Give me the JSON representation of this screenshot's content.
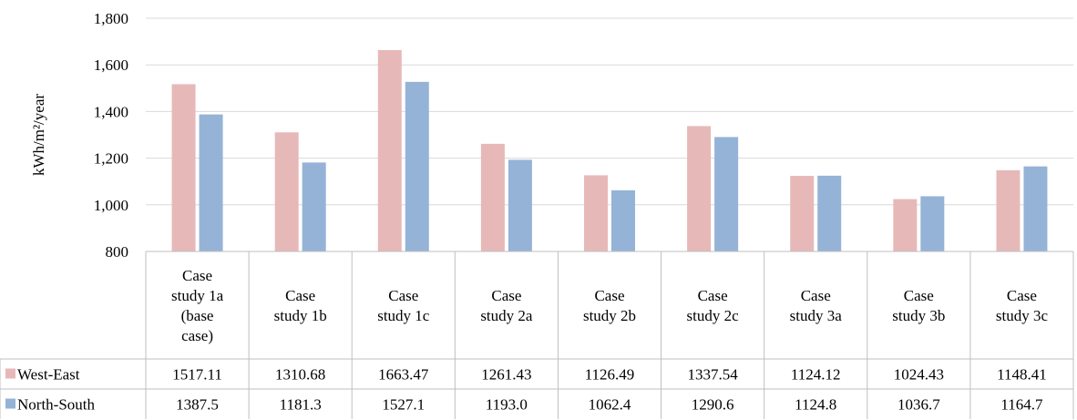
{
  "chart_data": {
    "type": "bar",
    "ylabel": "kWh/m²/year",
    "ylim": [
      800,
      1800
    ],
    "yticks": [
      800,
      1000,
      1200,
      1400,
      1600,
      1800
    ],
    "ytick_labels": [
      "800",
      "1,000",
      "1,200",
      "1,400",
      "1,600",
      "1,800"
    ],
    "grid": true,
    "legend": "data-table",
    "categories": [
      [
        "Case",
        "study 1a",
        "(base",
        "case)"
      ],
      [
        "Case",
        "study 1b"
      ],
      [
        "Case",
        "study 1c"
      ],
      [
        "Case",
        "study 2a"
      ],
      [
        "Case",
        "study 2b"
      ],
      [
        "Case",
        "study 2c"
      ],
      [
        "Case",
        "study 3a"
      ],
      [
        "Case",
        "study 3b"
      ],
      [
        "Case",
        "study 3c"
      ]
    ],
    "series": [
      {
        "name": "West-East",
        "color": "#e6b9b8",
        "values": [
          1517.11,
          1310.68,
          1663.47,
          1261.43,
          1126.49,
          1337.54,
          1124.12,
          1024.43,
          1148.41
        ],
        "labels": [
          "1517.11",
          "1310.68",
          "1663.47",
          "1261.43",
          "1126.49",
          "1337.54",
          "1124.12",
          "1024.43",
          "1148.41"
        ]
      },
      {
        "name": "North-South",
        "color": "#95b3d7",
        "values": [
          1387.5,
          1181.3,
          1527.1,
          1193.0,
          1062.4,
          1290.6,
          1124.8,
          1036.7,
          1164.7
        ],
        "labels": [
          "1387.5",
          "1181.3",
          "1527.1",
          "1193.0",
          "1062.4",
          "1290.6",
          "1124.8",
          "1036.7",
          "1164.7"
        ]
      }
    ]
  }
}
